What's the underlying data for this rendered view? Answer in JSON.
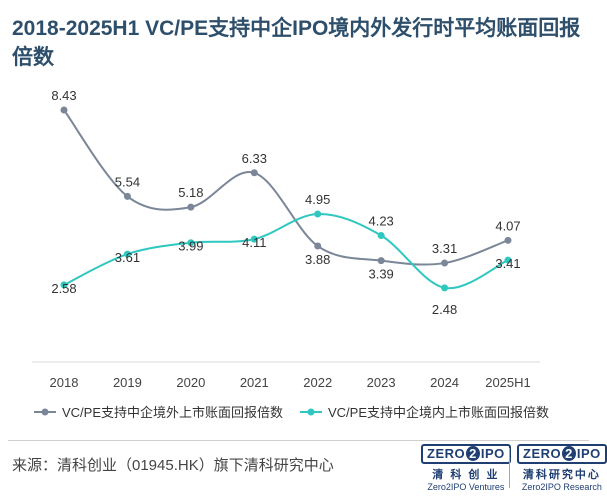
{
  "title": "2018-2025H1 VC/PE支持中企IPO境内外发行时平均账面回报倍数",
  "source": "来源：清科创业（01945.HK）旗下清科研究中心",
  "logos": [
    {
      "badge_left": "ZERO",
      "badge_mid": "2",
      "badge_right": "IPO",
      "cn": "清 科 创 业",
      "en": "Zero2IPO Ventures"
    },
    {
      "badge_left": "ZERO",
      "badge_mid": "2",
      "badge_right": "IPO",
      "cn": "清科研究中心",
      "en": "Zero2IPO Research"
    }
  ],
  "chart_data": {
    "type": "line",
    "categories": [
      "2018",
      "2019",
      "2020",
      "2021",
      "2022",
      "2023",
      "2024",
      "2025H1"
    ],
    "series": [
      {
        "name": "VC/PE支持中企境外上市账面回报倍数",
        "values": [
          8.43,
          5.54,
          5.18,
          6.33,
          3.88,
          3.39,
          3.31,
          4.07
        ],
        "color": "#7b8798"
      },
      {
        "name": "VC/PE支持中企境内上市账面回报倍数",
        "values": [
          2.58,
          3.61,
          3.99,
          4.11,
          4.95,
          4.23,
          2.48,
          3.41
        ],
        "color": "#2ec8c0"
      }
    ],
    "ylim": [
      0,
      9.5
    ],
    "grid": false,
    "legend": "bottom"
  }
}
